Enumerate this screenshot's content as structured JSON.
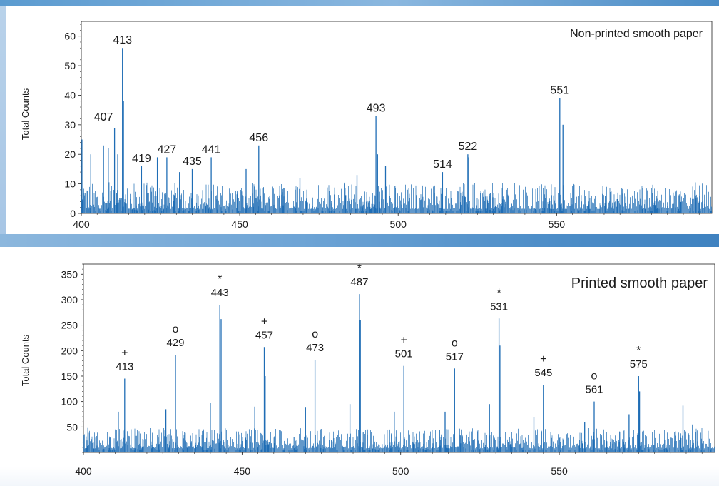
{
  "chart_data": [
    {
      "type": "line",
      "title": "Non-printed smooth paper",
      "ylabel": "Total Counts",
      "xlim": [
        400,
        599
      ],
      "ylim": [
        0,
        65
      ],
      "x_ticks": [
        "400",
        "450",
        "500",
        "550"
      ],
      "y_ticks": [
        "0",
        "10",
        "20",
        "30",
        "40",
        "50",
        "60"
      ],
      "peaks": [
        {
          "x": 400.2,
          "y": 25
        },
        {
          "x": 403,
          "y": 20
        },
        {
          "x": 407,
          "y": 23
        },
        {
          "x": 408.5,
          "y": 22
        },
        {
          "x": 410.5,
          "y": 29
        },
        {
          "x": 411.5,
          "y": 20
        },
        {
          "x": 413,
          "y": 56
        },
        {
          "x": 413.3,
          "y": 38
        },
        {
          "x": 419,
          "y": 16
        },
        {
          "x": 424,
          "y": 19
        },
        {
          "x": 427,
          "y": 19
        },
        {
          "x": 431,
          "y": 14
        },
        {
          "x": 435,
          "y": 15
        },
        {
          "x": 441,
          "y": 19
        },
        {
          "x": 452,
          "y": 15
        },
        {
          "x": 456,
          "y": 23
        },
        {
          "x": 469,
          "y": 12
        },
        {
          "x": 487,
          "y": 13
        },
        {
          "x": 493,
          "y": 33
        },
        {
          "x": 493.5,
          "y": 20
        },
        {
          "x": 496,
          "y": 16
        },
        {
          "x": 514,
          "y": 14
        },
        {
          "x": 522,
          "y": 20
        },
        {
          "x": 522.3,
          "y": 19
        },
        {
          "x": 551,
          "y": 39
        },
        {
          "x": 552,
          "y": 30
        }
      ],
      "annotations": [
        "407",
        "413",
        "419",
        "427",
        "435",
        "441",
        "456",
        "493",
        "514",
        "522",
        "551"
      ],
      "color": "#1f6db5"
    },
    {
      "type": "line",
      "title": "Printed smooth paper",
      "ylabel": "Total Counts",
      "xlim": [
        400,
        599
      ],
      "ylim": [
        0,
        370
      ],
      "x_ticks": [
        "400",
        "450",
        "500",
        "550"
      ],
      "y_ticks": [
        "50",
        "100",
        "150",
        "200",
        "250",
        "300",
        "350"
      ],
      "peaks": [
        {
          "x": 411,
          "y": 80
        },
        {
          "x": 413,
          "y": 145
        },
        {
          "x": 426,
          "y": 85
        },
        {
          "x": 429,
          "y": 192
        },
        {
          "x": 440,
          "y": 98
        },
        {
          "x": 443,
          "y": 290
        },
        {
          "x": 443.4,
          "y": 262
        },
        {
          "x": 454,
          "y": 90
        },
        {
          "x": 457,
          "y": 207
        },
        {
          "x": 457.3,
          "y": 150
        },
        {
          "x": 470,
          "y": 88
        },
        {
          "x": 473,
          "y": 182
        },
        {
          "x": 484,
          "y": 95
        },
        {
          "x": 487,
          "y": 311
        },
        {
          "x": 487.3,
          "y": 260
        },
        {
          "x": 498,
          "y": 80
        },
        {
          "x": 501,
          "y": 170
        },
        {
          "x": 514,
          "y": 80
        },
        {
          "x": 517,
          "y": 165
        },
        {
          "x": 528,
          "y": 95
        },
        {
          "x": 531,
          "y": 263
        },
        {
          "x": 531.3,
          "y": 210
        },
        {
          "x": 542,
          "y": 70
        },
        {
          "x": 545,
          "y": 133
        },
        {
          "x": 558,
          "y": 60
        },
        {
          "x": 561,
          "y": 100
        },
        {
          "x": 572,
          "y": 75
        },
        {
          "x": 575,
          "y": 150
        },
        {
          "x": 575.3,
          "y": 120
        },
        {
          "x": 589,
          "y": 92
        },
        {
          "x": 592,
          "y": 55
        }
      ],
      "annotations": [
        {
          "label": "413",
          "marker": "+"
        },
        {
          "label": "429",
          "marker": "o"
        },
        {
          "label": "443",
          "marker": "*"
        },
        {
          "label": "457",
          "marker": "+"
        },
        {
          "label": "473",
          "marker": "o"
        },
        {
          "label": "487",
          "marker": "*"
        },
        {
          "label": "501",
          "marker": "+"
        },
        {
          "label": "517",
          "marker": "o"
        },
        {
          "label": "531",
          "marker": "*"
        },
        {
          "label": "545",
          "marker": "+"
        },
        {
          "label": "561",
          "marker": "o"
        },
        {
          "label": "575",
          "marker": "*"
        }
      ],
      "color": "#1f6db5"
    }
  ]
}
